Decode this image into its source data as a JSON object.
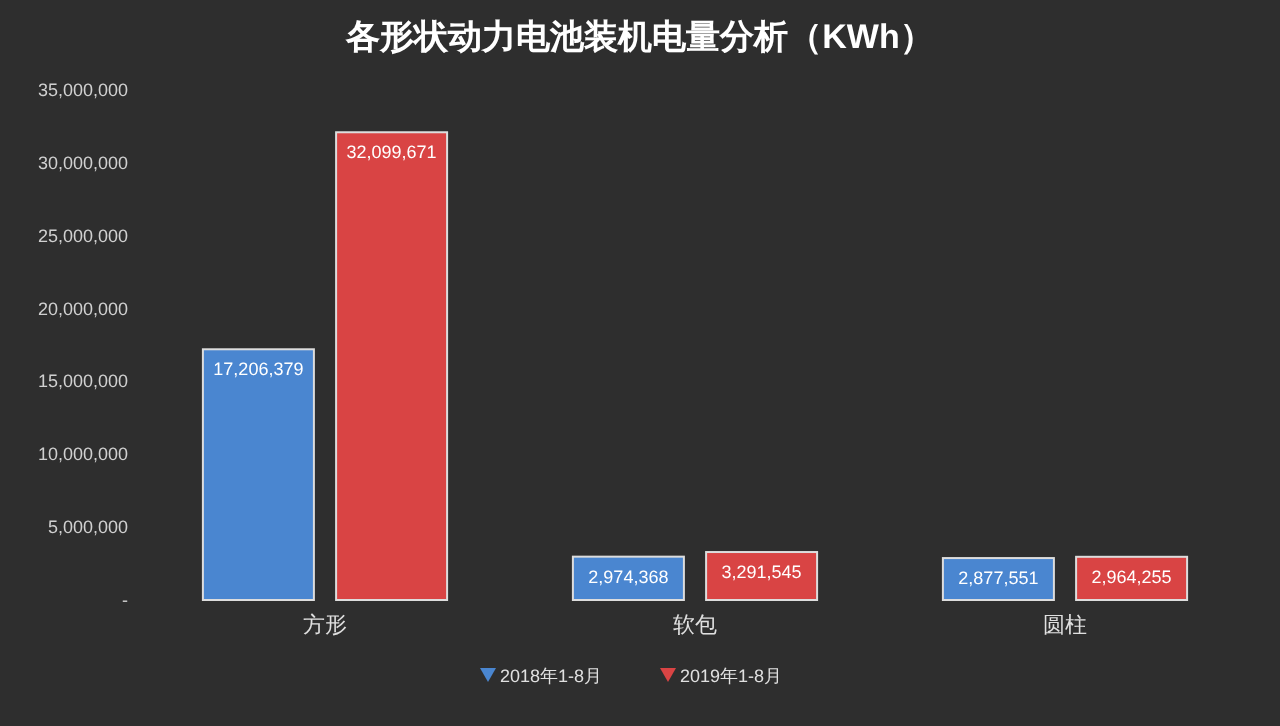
{
  "chart_data": {
    "type": "bar",
    "title": "各形状动力电池装机电量分析（KWh）",
    "categories": [
      "方形",
      "软包",
      "圆柱"
    ],
    "series": [
      {
        "name": "2018年1-8月",
        "color": "#4a86d0",
        "values": [
          17206379,
          2974368,
          2877551
        ],
        "value_labels": [
          "17,206,379",
          "2,974,368",
          "2,877,551"
        ]
      },
      {
        "name": "2019年1-8月",
        "color": "#d94444",
        "values": [
          32099671,
          3291545,
          2964255
        ],
        "value_labels": [
          "32,099,671",
          "3,291,545",
          "2,964,255"
        ]
      }
    ],
    "ylim": [
      0,
      35000000
    ],
    "yticks": [
      {
        "value": 0,
        "label": "-"
      },
      {
        "value": 5000000,
        "label": "5,000,000"
      },
      {
        "value": 10000000,
        "label": "10,000,000"
      },
      {
        "value": 15000000,
        "label": "15,000,000"
      },
      {
        "value": 20000000,
        "label": "20,000,000"
      },
      {
        "value": 25000000,
        "label": "25,000,000"
      },
      {
        "value": 30000000,
        "label": "30,000,000"
      },
      {
        "value": 35000000,
        "label": "35,000,000"
      }
    ],
    "grid": false,
    "legend": "bottom",
    "marker": "triangle"
  }
}
